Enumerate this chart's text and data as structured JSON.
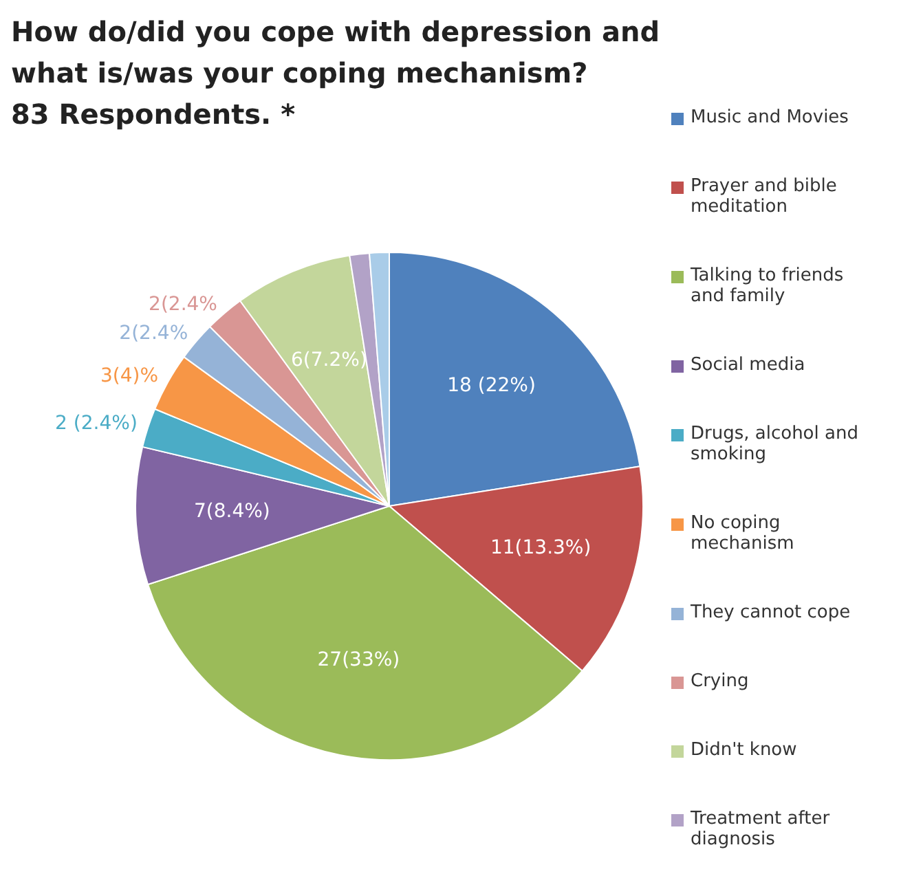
{
  "chart_data": {
    "type": "pie",
    "title": "How do/did you cope with depression and what is/was your coping mechanism?",
    "subtitle": "83 Respondents. *",
    "categories": [
      "Music and Movies",
      "Prayer and bible meditation",
      "Talking to friends and family",
      "Social media",
      "Drugs, alcohol and smoking",
      "No coping mechanism",
      "They cannot cope",
      "Crying",
      "Didn't know",
      "Treatment after diagnosis",
      null
    ],
    "values": [
      18,
      11,
      27,
      7,
      2,
      3,
      2,
      2,
      6,
      1,
      1
    ],
    "colors": [
      "#4f81bd",
      "#c0504d",
      "#9bbb59",
      "#8064a2",
      "#4bacc6",
      "#f79646",
      "#95b3d7",
      "#d99694",
      "#c3d69b",
      "#b2a2c7",
      "#a9cce8"
    ],
    "value_labels": [
      "18 (22%)",
      "11(13.3%)",
      "27(33%)",
      "7(8.4%)",
      "2 (2.4%)",
      "3(4)%",
      "2(2.4%",
      "2(2.4%",
      "6(7.2%)",
      null,
      null
    ],
    "legend": "right"
  }
}
